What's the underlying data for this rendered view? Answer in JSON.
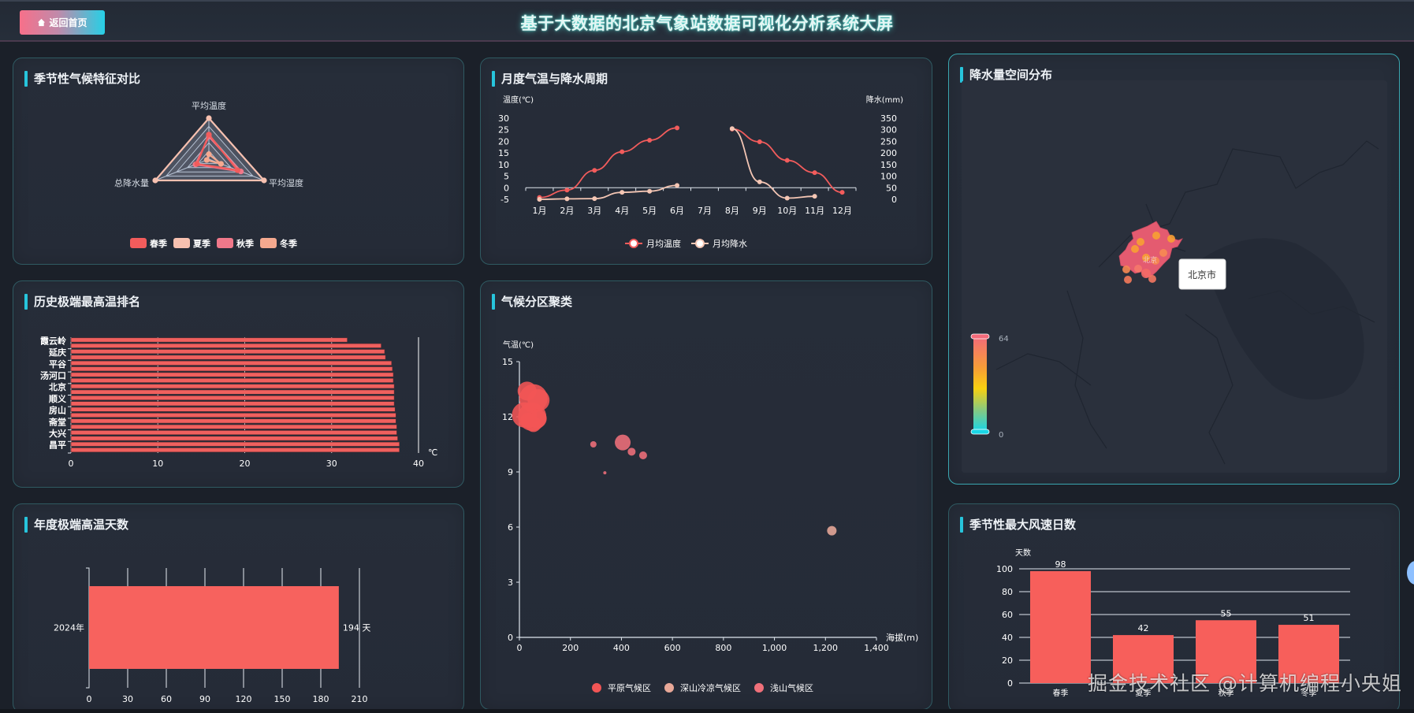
{
  "header": {
    "home_button": "返回首页",
    "home_icon": "home-icon",
    "title": "基于大数据的北京气象站数据可视化分析系统大屏"
  },
  "panels": {
    "seasonal_radar": {
      "title": "季节性气候特征对比"
    },
    "monthly_cycle": {
      "title": "月度气温与降水周期"
    },
    "precip_map": {
      "title": "降水量空间分布"
    },
    "extreme_rank": {
      "title": "历史极端最高温排名"
    },
    "climate_cluster": {
      "title": "气候分区聚类"
    },
    "extreme_days": {
      "title": "年度极端高温天数"
    },
    "wind_days": {
      "title": "季节性最大风速日数"
    }
  },
  "watermark": "掘金技术社区 @计算机编程小央姐",
  "chart_data": [
    {
      "id": "seasonal_radar",
      "type": "radar",
      "indicators": [
        "平均温度",
        "平均湿度",
        "总降水量"
      ],
      "series": [
        {
          "name": "春季",
          "color": "#f25c5c",
          "values": [
            0.6,
            0.52,
            0.22
          ]
        },
        {
          "name": "夏季",
          "color": "#f7c1b0",
          "values": [
            1.0,
            1.0,
            1.0
          ]
        },
        {
          "name": "秋季",
          "color": "#f0788a",
          "values": [
            0.55,
            0.58,
            0.25
          ]
        },
        {
          "name": "冬季",
          "color": "#f5a98f",
          "values": [
            0.12,
            0.22,
            0.04
          ]
        }
      ],
      "legend": [
        "春季",
        "夏季",
        "秋季",
        "冬季"
      ]
    },
    {
      "id": "monthly_cycle",
      "type": "line",
      "categories": [
        "1月",
        "2月",
        "3月",
        "4月",
        "5月",
        "6月",
        "7月",
        "8月",
        "9月",
        "10月",
        "11月",
        "12月"
      ],
      "series": [
        {
          "name": "月均温度",
          "axis": "left",
          "color": "#f25c5c",
          "values": [
            -4.2,
            -1.0,
            7.5,
            15.5,
            20.5,
            25.8,
            null,
            25.3,
            19.8,
            11.8,
            6.5,
            -2.0
          ]
        },
        {
          "name": "月均降水",
          "axis": "right",
          "color": "#f4c6b4",
          "values": [
            0,
            2,
            3,
            30,
            35,
            60,
            null,
            305,
            75,
            5,
            13,
            null
          ]
        }
      ],
      "ylabel_left": "温度(℃)",
      "ylabel_right": "降水(mm)",
      "yticks_left": [
        30,
        25,
        20,
        15,
        10,
        5,
        0,
        -5
      ],
      "yticks_right": [
        350,
        300,
        250,
        200,
        150,
        100,
        50,
        0
      ],
      "ylim_left": [
        -5,
        30
      ],
      "ylim_right": [
        0,
        350
      ]
    },
    {
      "id": "precip_map",
      "type": "map",
      "region": "北京市",
      "tooltip": "北京市",
      "visual_map": {
        "min": 0,
        "max": 64,
        "max_label": "64",
        "min_label": "0"
      }
    },
    {
      "id": "extreme_rank",
      "type": "bar",
      "orientation": "horizontal",
      "labels_shown": [
        "霞云岭",
        "延庆",
        "平谷",
        "汤河口",
        "北京",
        "顺义",
        "房山",
        "斋堂",
        "大兴",
        "昌平"
      ],
      "values": [
        31.8,
        35.7,
        36.1,
        36.2,
        36.9,
        37.0,
        37.1,
        37.1,
        37.2,
        37.2,
        37.2,
        37.2,
        37.3,
        37.4,
        37.4,
        37.5,
        37.5,
        37.6,
        37.8,
        37.8
      ],
      "xticks": [
        0,
        10,
        20,
        30,
        40
      ],
      "xunit": "℃",
      "xlim": [
        0,
        40
      ]
    },
    {
      "id": "climate_cluster",
      "type": "scatter",
      "xlabel": "海拔(m)",
      "ylabel": "气温(℃)",
      "xticks": [
        "0",
        "200",
        "400",
        "600",
        "800",
        "1,000",
        "1,200",
        "1,400"
      ],
      "yticks": [
        15,
        12,
        9,
        6,
        3,
        0
      ],
      "xlim": [
        0,
        1400
      ],
      "ylim": [
        0,
        15
      ],
      "series": [
        {
          "name": "平原气候区",
          "color": "#f25555",
          "points": [
            [
              30,
              13.4,
              12
            ],
            [
              55,
              13.0,
              18
            ],
            [
              75,
              12.9,
              14
            ],
            [
              20,
              12.1,
              16
            ],
            [
              50,
              12.0,
              18
            ],
            [
              70,
              11.9,
              12
            ],
            [
              55,
              11.6,
              10
            ],
            [
              35,
              11.8,
              10
            ]
          ]
        },
        {
          "name": "深山冷凉气候区",
          "color": "#e8a898",
          "points": [
            [
              1225,
              5.8,
              6
            ]
          ]
        },
        {
          "name": "浅山气候区",
          "color": "#f0707a",
          "points": [
            [
              290,
              10.5,
              4
            ],
            [
              405,
              10.6,
              10
            ],
            [
              440,
              10.1,
              5
            ],
            [
              485,
              9.9,
              5
            ],
            [
              335,
              8.95,
              2
            ]
          ]
        }
      ],
      "legend": [
        "平原气候区",
        "深山冷凉气候区",
        "浅山气候区"
      ]
    },
    {
      "id": "extreme_days",
      "type": "bar",
      "orientation": "horizontal",
      "categories": [
        "2024年"
      ],
      "values": [
        194
      ],
      "value_label": "194 天",
      "xticks": [
        0,
        30,
        60,
        90,
        120,
        150,
        180,
        210
      ],
      "xlim": [
        0,
        210
      ]
    },
    {
      "id": "wind_days",
      "type": "bar",
      "categories": [
        "春季",
        "夏季",
        "秋季",
        "冬季"
      ],
      "values": [
        98,
        42,
        55,
        51
      ],
      "ylabel": "天数",
      "yticks": [
        100,
        80,
        60,
        40,
        20,
        0
      ],
      "ylim": [
        0,
        100
      ]
    }
  ]
}
